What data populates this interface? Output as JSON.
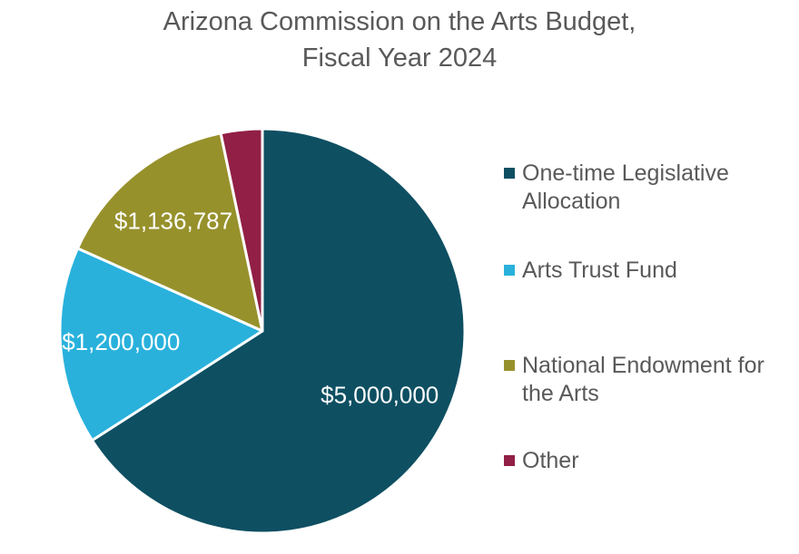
{
  "page": {
    "background_color": "#FFFFFF"
  },
  "title": {
    "line1": "Arizona Commission on the Arts Budget,",
    "line2": "Fiscal Year 2024",
    "color": "#595959"
  },
  "chart_data": {
    "type": "pie",
    "title": "Arizona Commission on the Arts Budget, Fiscal Year 2024",
    "legend_position": "right",
    "start_angle_deg": 0,
    "direction": "clockwise",
    "slice_border_color": "#FFFFFF",
    "data_label_color": "#FFFFFF",
    "legend_text_color": "#595959",
    "slices": [
      {
        "label": "One-time Legislative Allocation",
        "value": 5000000,
        "value_label": "$5,000,000",
        "percent_of_pie_est": 65.9,
        "color": "#0E4F62"
      },
      {
        "label": "Arts Trust Fund",
        "value": 1200000,
        "value_label": "$1,200,000",
        "percent_of_pie_est": 15.8,
        "color": "#29B1DC"
      },
      {
        "label": "National Endowment for the Arts",
        "value": 1136787,
        "value_label": "$1,136,787",
        "percent_of_pie_est": 15.0,
        "color": "#97912C"
      },
      {
        "label": "Other",
        "value": null,
        "value_label": null,
        "percent_of_pie_est": 3.3,
        "color": "#911F46"
      }
    ]
  }
}
